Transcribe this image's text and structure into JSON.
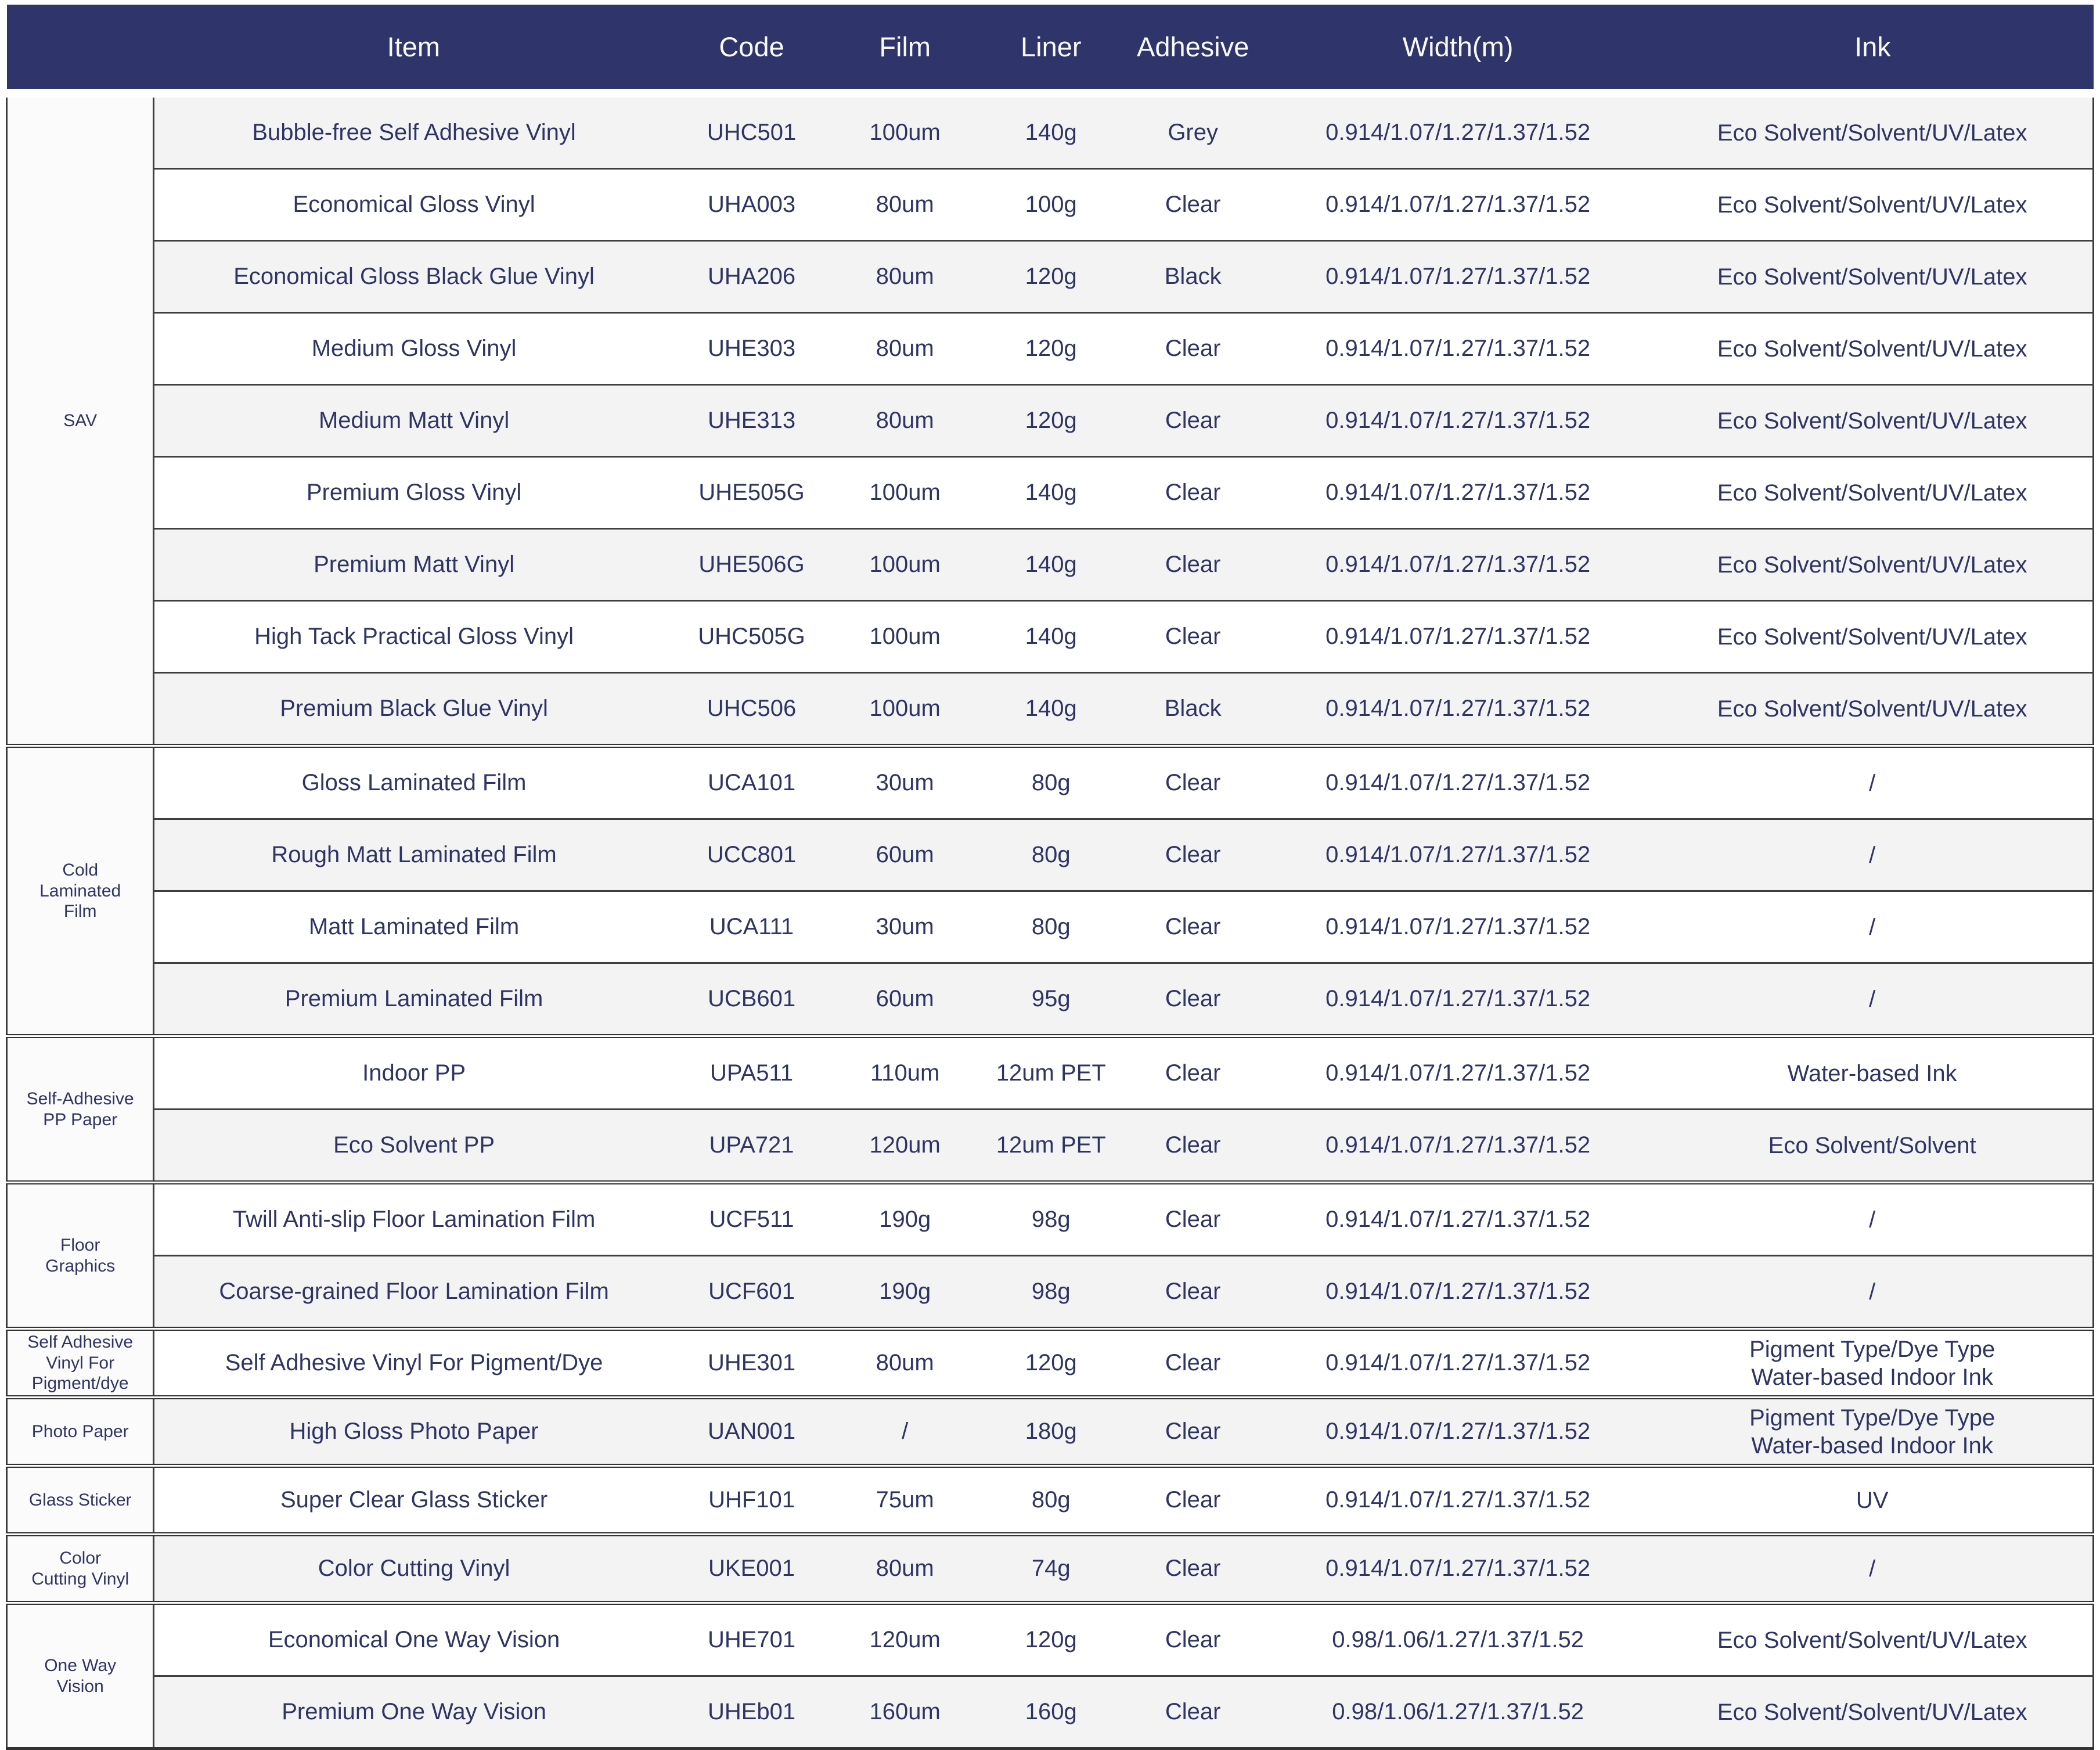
{
  "theme": {
    "header_bg": "#2f356b",
    "header_text": "#fafafa",
    "cell_text": "#2e3464",
    "stripe_grey": "#f3f3f4",
    "stripe_white": "#ffffff",
    "category_bg": "#fbfbfc",
    "separator": "#3f3f3f"
  },
  "header": {
    "columns": [
      "Item",
      "Code",
      "Film",
      "Liner",
      "Adhesive",
      "Width(m)",
      "Ink"
    ]
  },
  "sections": [
    {
      "category": "SAV",
      "rows": [
        {
          "item": "Bubble-free Self Adhesive Vinyl",
          "code": "UHC501",
          "film": "100um",
          "liner": "140g",
          "adhesive": "Grey",
          "width": "0.914/1.07/1.27/1.37/1.52",
          "ink": "Eco Solvent/Solvent/UV/Latex"
        },
        {
          "item": "Economical Gloss Vinyl",
          "code": "UHA003",
          "film": "80um",
          "liner": "100g",
          "adhesive": "Clear",
          "width": "0.914/1.07/1.27/1.37/1.52",
          "ink": "Eco Solvent/Solvent/UV/Latex"
        },
        {
          "item": "Economical Gloss Black Glue Vinyl",
          "code": "UHA206",
          "film": "80um",
          "liner": "120g",
          "adhesive": "Black",
          "width": "0.914/1.07/1.27/1.37/1.52",
          "ink": "Eco Solvent/Solvent/UV/Latex"
        },
        {
          "item": "Medium Gloss Vinyl",
          "code": "UHE303",
          "film": "80um",
          "liner": "120g",
          "adhesive": "Clear",
          "width": "0.914/1.07/1.27/1.37/1.52",
          "ink": "Eco Solvent/Solvent/UV/Latex"
        },
        {
          "item": "Medium Matt Vinyl",
          "code": "UHE313",
          "film": "80um",
          "liner": "120g",
          "adhesive": "Clear",
          "width": "0.914/1.07/1.27/1.37/1.52",
          "ink": "Eco Solvent/Solvent/UV/Latex"
        },
        {
          "item": "Premium Gloss Vinyl",
          "code": "UHE505G",
          "film": "100um",
          "liner": "140g",
          "adhesive": "Clear",
          "width": "0.914/1.07/1.27/1.37/1.52",
          "ink": "Eco Solvent/Solvent/UV/Latex"
        },
        {
          "item": "Premium Matt Vinyl",
          "code": "UHE506G",
          "film": "100um",
          "liner": "140g",
          "adhesive": "Clear",
          "width": "0.914/1.07/1.27/1.37/1.52",
          "ink": "Eco Solvent/Solvent/UV/Latex"
        },
        {
          "item": "High Tack Practical Gloss Vinyl",
          "code": "UHC505G",
          "film": "100um",
          "liner": "140g",
          "adhesive": "Clear",
          "width": "0.914/1.07/1.27/1.37/1.52",
          "ink": "Eco Solvent/Solvent/UV/Latex"
        },
        {
          "item": "Premium Black Glue Vinyl",
          "code": "UHC506",
          "film": "100um",
          "liner": "140g",
          "adhesive": "Black",
          "width": "0.914/1.07/1.27/1.37/1.52",
          "ink": "Eco Solvent/Solvent/UV/Latex"
        }
      ]
    },
    {
      "category": "Cold\nLaminated\nFilm",
      "rows": [
        {
          "item": "Gloss Laminated Film",
          "code": "UCA101",
          "film": "30um",
          "liner": "80g",
          "adhesive": "Clear",
          "width": "0.914/1.07/1.27/1.37/1.52",
          "ink": "/"
        },
        {
          "item": "Rough Matt Laminated Film",
          "code": "UCC801",
          "film": "60um",
          "liner": "80g",
          "adhesive": "Clear",
          "width": "0.914/1.07/1.27/1.37/1.52",
          "ink": "/"
        },
        {
          "item": "Matt Laminated Film",
          "code": "UCA111",
          "film": "30um",
          "liner": "80g",
          "adhesive": "Clear",
          "width": "0.914/1.07/1.27/1.37/1.52",
          "ink": "/"
        },
        {
          "item": "Premium Laminated Film",
          "code": "UCB601",
          "film": "60um",
          "liner": "95g",
          "adhesive": "Clear",
          "width": "0.914/1.07/1.27/1.37/1.52",
          "ink": "/"
        }
      ]
    },
    {
      "category": "Self-Adhesive\nPP Paper",
      "rows": [
        {
          "item": "Indoor PP",
          "code": "UPA511",
          "film": "110um",
          "liner": "12um PET",
          "adhesive": "Clear",
          "width": "0.914/1.07/1.27/1.37/1.52",
          "ink": "Water-based Ink"
        },
        {
          "item": "Eco Solvent PP",
          "code": "UPA721",
          "film": "120um",
          "liner": "12um PET",
          "adhesive": "Clear",
          "width": "0.914/1.07/1.27/1.37/1.52",
          "ink": "Eco Solvent/Solvent"
        }
      ]
    },
    {
      "category": "Floor\nGraphics",
      "rows": [
        {
          "item": "Twill Anti-slip Floor Lamination Film",
          "code": "UCF511",
          "film": "190g",
          "liner": "98g",
          "adhesive": "Clear",
          "width": "0.914/1.07/1.27/1.37/1.52",
          "ink": "/"
        },
        {
          "item": "Coarse-grained Floor Lamination Film",
          "code": "UCF601",
          "film": "190g",
          "liner": "98g",
          "adhesive": "Clear",
          "width": "0.914/1.07/1.27/1.37/1.52",
          "ink": "/"
        }
      ]
    },
    {
      "category": "Self Adhesive\nVinyl For\nPigment/dye",
      "rows": [
        {
          "item": "Self Adhesive Vinyl For Pigment/Dye",
          "code": "UHE301",
          "film": "80um",
          "liner": "120g",
          "adhesive": "Clear",
          "width": "0.914/1.07/1.27/1.37/1.52",
          "ink": "Pigment Type/Dye Type\nWater-based Indoor Ink"
        }
      ]
    },
    {
      "category": "Photo Paper",
      "rows": [
        {
          "item": "High Gloss Photo Paper",
          "code": "UAN001",
          "film": "/",
          "liner": "180g",
          "adhesive": "Clear",
          "width": "0.914/1.07/1.27/1.37/1.52",
          "ink": "Pigment Type/Dye Type\nWater-based Indoor Ink"
        }
      ]
    },
    {
      "category": "Glass Sticker",
      "rows": [
        {
          "item": "Super Clear Glass Sticker",
          "code": "UHF101",
          "film": "75um",
          "liner": "80g",
          "adhesive": "Clear",
          "width": "0.914/1.07/1.27/1.37/1.52",
          "ink": "UV"
        }
      ]
    },
    {
      "category": "Color\nCutting Vinyl",
      "rows": [
        {
          "item": "Color Cutting Vinyl",
          "code": "UKE001",
          "film": "80um",
          "liner": "74g",
          "adhesive": "Clear",
          "width": "0.914/1.07/1.27/1.37/1.52",
          "ink": "/"
        }
      ]
    },
    {
      "category": "One Way\nVision",
      "rows": [
        {
          "item": "Economical One Way Vision",
          "code": "UHE701",
          "film": "120um",
          "liner": "120g",
          "adhesive": "Clear",
          "width": "0.98/1.06/1.27/1.37/1.52",
          "ink": "Eco Solvent/Solvent/UV/Latex"
        },
        {
          "item": "Premium One Way Vision",
          "code": "UHEb01",
          "film": "160um",
          "liner": "160g",
          "adhesive": "Clear",
          "width": "0.98/1.06/1.27/1.37/1.52",
          "ink": "Eco Solvent/Solvent/UV/Latex"
        }
      ]
    }
  ]
}
